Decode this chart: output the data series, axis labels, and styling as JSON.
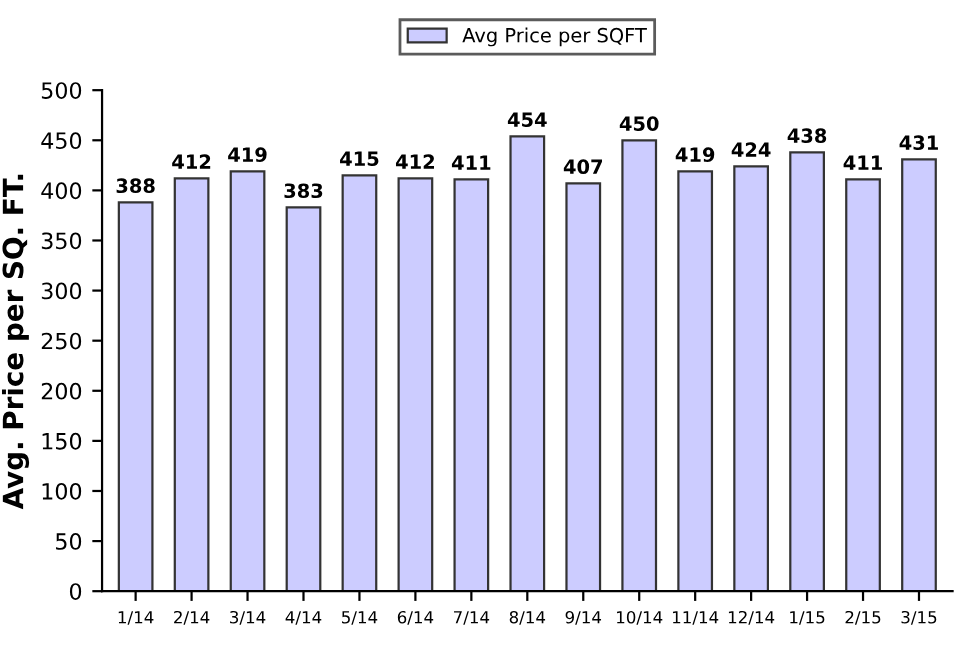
{
  "chart_data": {
    "type": "bar",
    "ylabel": "Avg. Price per SQ. FT.",
    "categories": [
      "1/14",
      "2/14",
      "3/14",
      "4/14",
      "5/14",
      "6/14",
      "7/14",
      "8/14",
      "9/14",
      "10/14",
      "11/14",
      "12/14",
      "1/15",
      "2/15",
      "3/15"
    ],
    "series": [
      {
        "name": "Avg Price per SQFT",
        "color": "#ccccff",
        "values": [
          388,
          412,
          419,
          383,
          415,
          412,
          411,
          454,
          407,
          450,
          419,
          424,
          438,
          411,
          431
        ]
      }
    ],
    "ylim": [
      0,
      500
    ],
    "yticks": [
      0,
      50,
      100,
      150,
      200,
      250,
      300,
      350,
      400,
      450,
      500
    ],
    "data_labels": true,
    "legend": "top",
    "grid": false
  }
}
